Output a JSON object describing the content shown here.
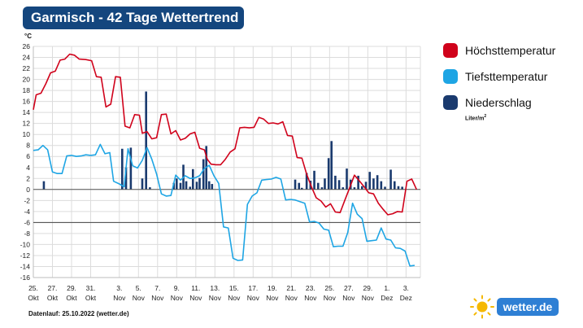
{
  "title": "Garmisch - 42 Tage Wettertrend",
  "footer": "Datenlauf: 25.10.2022 (wetter.de)",
  "logo_text": "wetter.de",
  "logo_icon": "sun-icon",
  "colors": {
    "title_bg": "#14467e",
    "max_temp": "#d0021b",
    "min_temp": "#1ea5e4",
    "precip": "#1a3a6e",
    "logo_bg": "#2e7fd4",
    "sun": "#f5b800"
  },
  "legend": {
    "max_temp": "Höchsttemperatur",
    "min_temp": "Tiefsttemperatur",
    "precip": "Niederschlag",
    "precip_unit": "Liter/m",
    "precip_unit_sup": "2"
  },
  "chart_data": {
    "type": "line",
    "ylabel": "°C",
    "ylim": [
      -16,
      26
    ],
    "y_ticks": [
      -16,
      -14,
      -12,
      -10,
      -8,
      -6,
      -4,
      -2,
      0,
      2,
      4,
      6,
      8,
      10,
      12,
      14,
      16,
      18,
      20,
      22,
      24,
      26
    ],
    "grid": true,
    "legend_position": "right",
    "x_days": [
      0,
      40.5
    ],
    "x_ticks": [
      {
        "day": 0,
        "num": "25.",
        "month": "Okt"
      },
      {
        "day": 2,
        "num": "27.",
        "month": "Okt"
      },
      {
        "day": 4,
        "num": "29.",
        "month": "Okt"
      },
      {
        "day": 6,
        "num": "31.",
        "month": "Okt"
      },
      {
        "day": 9,
        "num": "3.",
        "month": "Nov"
      },
      {
        "day": 11,
        "num": "5.",
        "month": "Nov"
      },
      {
        "day": 13,
        "num": "7.",
        "month": "Nov"
      },
      {
        "day": 15,
        "num": "9.",
        "month": "Nov"
      },
      {
        "day": 17,
        "num": "11.",
        "month": "Nov"
      },
      {
        "day": 19,
        "num": "13.",
        "month": "Nov"
      },
      {
        "day": 21,
        "num": "15.",
        "month": "Nov"
      },
      {
        "day": 23,
        "num": "17.",
        "month": "Nov"
      },
      {
        "day": 25,
        "num": "19.",
        "month": "Nov"
      },
      {
        "day": 27,
        "num": "21.",
        "month": "Nov"
      },
      {
        "day": 29,
        "num": "23.",
        "month": "Nov"
      },
      {
        "day": 31,
        "num": "25.",
        "month": "Nov"
      },
      {
        "day": 33,
        "num": "27.",
        "month": "Nov"
      },
      {
        "day": 35,
        "num": "29.",
        "month": "Nov"
      },
      {
        "day": 37,
        "num": "1.",
        "month": "Dez"
      },
      {
        "day": 39,
        "num": "3.",
        "month": "Dez"
      }
    ],
    "series": [
      {
        "name": "Höchsttemperatur",
        "points": [
          [
            0,
            14.5
          ],
          [
            0.3,
            17.2
          ],
          [
            0.8,
            17.5
          ],
          [
            1.3,
            19.2
          ],
          [
            1.8,
            21.2
          ],
          [
            2.3,
            21.5
          ],
          [
            2.8,
            23.5
          ],
          [
            3.3,
            23.7
          ],
          [
            3.8,
            24.6
          ],
          [
            4.3,
            24.4
          ],
          [
            4.8,
            23.7
          ],
          [
            5.5,
            23.6
          ],
          [
            6.1,
            23.4
          ],
          [
            6.6,
            20.5
          ],
          [
            7.1,
            20.4
          ],
          [
            7.6,
            15
          ],
          [
            8.1,
            15.5
          ],
          [
            8.6,
            20.5
          ],
          [
            9.1,
            20.4
          ],
          [
            9.6,
            11.5
          ],
          [
            10.1,
            11.2
          ],
          [
            10.6,
            13.6
          ],
          [
            11.1,
            13.5
          ],
          [
            11.4,
            10.2
          ],
          [
            11.9,
            10.5
          ],
          [
            12.4,
            9.2
          ],
          [
            12.9,
            9.4
          ],
          [
            13.4,
            13.6
          ],
          [
            13.9,
            13.7
          ],
          [
            14.4,
            10.1
          ],
          [
            14.9,
            10.7
          ],
          [
            15.4,
            9
          ],
          [
            15.9,
            9.3
          ],
          [
            16.4,
            10.1
          ],
          [
            16.9,
            10.4
          ],
          [
            17.4,
            7.5
          ],
          [
            17.9,
            7.2
          ],
          [
            18.2,
            5.5
          ],
          [
            18.6,
            4.6
          ],
          [
            19.1,
            4.5
          ],
          [
            19.6,
            4.5
          ],
          [
            20.1,
            5.5
          ],
          [
            20.6,
            6.8
          ],
          [
            21.1,
            7.4
          ],
          [
            21.6,
            11.2
          ],
          [
            22.1,
            11.3
          ],
          [
            22.6,
            11.2
          ],
          [
            23.1,
            11.3
          ],
          [
            23.6,
            13.1
          ],
          [
            24.1,
            12.8
          ],
          [
            24.6,
            12
          ],
          [
            25.1,
            12.1
          ],
          [
            25.6,
            11.9
          ],
          [
            26.1,
            12.3
          ],
          [
            26.6,
            9.8
          ],
          [
            27.1,
            9.7
          ],
          [
            27.6,
            5.8
          ],
          [
            28.1,
            5.7
          ],
          [
            28.6,
            2.8
          ],
          [
            29.1,
            0.5
          ],
          [
            29.6,
            -1.5
          ],
          [
            30.1,
            -2.1
          ],
          [
            30.6,
            -3.2
          ],
          [
            31.1,
            -2.6
          ],
          [
            31.6,
            -4.1
          ],
          [
            32.1,
            -4.2
          ],
          [
            32.6,
            -1.9
          ],
          [
            33.1,
            0.3
          ],
          [
            33.6,
            2.6
          ],
          [
            34.1,
            1.6
          ],
          [
            34.6,
            0.5
          ],
          [
            35.1,
            -0.6
          ],
          [
            35.6,
            -0.8
          ],
          [
            36.1,
            -2.5
          ],
          [
            36.6,
            -3.6
          ],
          [
            37.1,
            -4.6
          ],
          [
            37.6,
            -4.4
          ],
          [
            38.1,
            -4
          ],
          [
            38.6,
            -4.1
          ],
          [
            39.1,
            1.5
          ],
          [
            39.6,
            1.9
          ],
          [
            40.1,
            0
          ]
        ]
      },
      {
        "name": "Tiefsttemperatur",
        "points": [
          [
            0,
            7.1
          ],
          [
            0.5,
            7.2
          ],
          [
            1,
            8
          ],
          [
            1.5,
            7.2
          ],
          [
            2,
            3.2
          ],
          [
            2.5,
            2.9
          ],
          [
            3,
            2.9
          ],
          [
            3.5,
            6.1
          ],
          [
            4,
            6.2
          ],
          [
            4.5,
            6
          ],
          [
            5,
            6.1
          ],
          [
            5.5,
            6.3
          ],
          [
            6,
            6.2
          ],
          [
            6.5,
            6.3
          ],
          [
            7,
            8.2
          ],
          [
            7.5,
            6.5
          ],
          [
            8,
            6.7
          ],
          [
            8.4,
            1.5
          ],
          [
            9,
            1
          ],
          [
            9.5,
            0.5
          ],
          [
            9.9,
            7.4
          ],
          [
            10.4,
            4.3
          ],
          [
            10.9,
            3.9
          ],
          [
            11.4,
            5.3
          ],
          [
            11.9,
            7.6
          ],
          [
            12.4,
            5.5
          ],
          [
            12.9,
            2.8
          ],
          [
            13.4,
            -0.8
          ],
          [
            13.9,
            -1.2
          ],
          [
            14.4,
            -1.1
          ],
          [
            14.9,
            2.6
          ],
          [
            15.4,
            1.7
          ],
          [
            15.9,
            2.5
          ],
          [
            16.4,
            2
          ],
          [
            16.9,
            2.1
          ],
          [
            17.4,
            2.5
          ],
          [
            17.9,
            3.8
          ],
          [
            18.4,
            4.4
          ],
          [
            18.9,
            2.5
          ],
          [
            19.4,
            1.1
          ],
          [
            19.9,
            -6.8
          ],
          [
            20.4,
            -7
          ],
          [
            20.9,
            -12.5
          ],
          [
            21.4,
            -12.9
          ],
          [
            21.9,
            -12.8
          ],
          [
            22.4,
            -2.7
          ],
          [
            22.9,
            -1.2
          ],
          [
            23.4,
            -0.6
          ],
          [
            23.9,
            1.7
          ],
          [
            24.4,
            1.8
          ],
          [
            24.9,
            1.9
          ],
          [
            25.4,
            2.2
          ],
          [
            25.9,
            1.9
          ],
          [
            26.4,
            -1.9
          ],
          [
            26.9,
            -1.8
          ],
          [
            27.4,
            -1.9
          ],
          [
            27.9,
            -2.2
          ],
          [
            28.4,
            -2.5
          ],
          [
            28.9,
            -5.9
          ],
          [
            29.4,
            -5.8
          ],
          [
            29.9,
            -6.1
          ],
          [
            30.4,
            -7.2
          ],
          [
            30.9,
            -7.4
          ],
          [
            31.4,
            -10.4
          ],
          [
            31.9,
            -10.3
          ],
          [
            32.4,
            -10.3
          ],
          [
            32.9,
            -7.8
          ],
          [
            33.4,
            -2.5
          ],
          [
            33.9,
            -4.5
          ],
          [
            34.4,
            -5.3
          ],
          [
            34.9,
            -9.4
          ],
          [
            35.4,
            -9.3
          ],
          [
            35.9,
            -9.2
          ],
          [
            36.4,
            -7
          ],
          [
            36.9,
            -9
          ],
          [
            37.4,
            -9.2
          ],
          [
            37.9,
            -10.6
          ],
          [
            38.4,
            -10.7
          ],
          [
            38.9,
            -11.2
          ],
          [
            39.4,
            -13.9
          ],
          [
            39.9,
            -13.8
          ]
        ]
      },
      {
        "name": "Niederschlag",
        "type": "bar",
        "points": [
          [
            1.1,
            1.5
          ],
          [
            9.3,
            7.4
          ],
          [
            9.7,
            4
          ],
          [
            10.2,
            7.6
          ],
          [
            11.4,
            2
          ],
          [
            11.8,
            17.8
          ],
          [
            12.2,
            0.4
          ],
          [
            14.7,
            1.2
          ],
          [
            15,
            2
          ],
          [
            15.4,
            1.2
          ],
          [
            15.7,
            4.5
          ],
          [
            16,
            1.5
          ],
          [
            16.4,
            0.5
          ],
          [
            16.7,
            3.7
          ],
          [
            17.1,
            1.4
          ],
          [
            17.4,
            2.1
          ],
          [
            17.8,
            5.5
          ],
          [
            18.1,
            7.9
          ],
          [
            18.4,
            1.5
          ],
          [
            18.7,
            1
          ],
          [
            27.4,
            1.8
          ],
          [
            27.8,
            1.2
          ],
          [
            28.1,
            0.3
          ],
          [
            28.6,
            3
          ],
          [
            29,
            1.6
          ],
          [
            29.4,
            3.4
          ],
          [
            29.8,
            1.2
          ],
          [
            30.2,
            0.4
          ],
          [
            30.5,
            2
          ],
          [
            30.9,
            5.7
          ],
          [
            31.2,
            8.8
          ],
          [
            31.6,
            2.5
          ],
          [
            32,
            1.7
          ],
          [
            32.4,
            0.4
          ],
          [
            32.8,
            3.8
          ],
          [
            33.2,
            1.8
          ],
          [
            33.6,
            0.4
          ],
          [
            34,
            2.5
          ],
          [
            34.4,
            0.6
          ],
          [
            34.8,
            1.4
          ],
          [
            35.2,
            3.2
          ],
          [
            35.6,
            2
          ],
          [
            36,
            2.6
          ],
          [
            36.4,
            1.5
          ],
          [
            36.8,
            0.5
          ],
          [
            37.4,
            3.6
          ],
          [
            37.8,
            1.5
          ],
          [
            38.2,
            0.6
          ],
          [
            38.6,
            0.5
          ]
        ]
      }
    ]
  }
}
